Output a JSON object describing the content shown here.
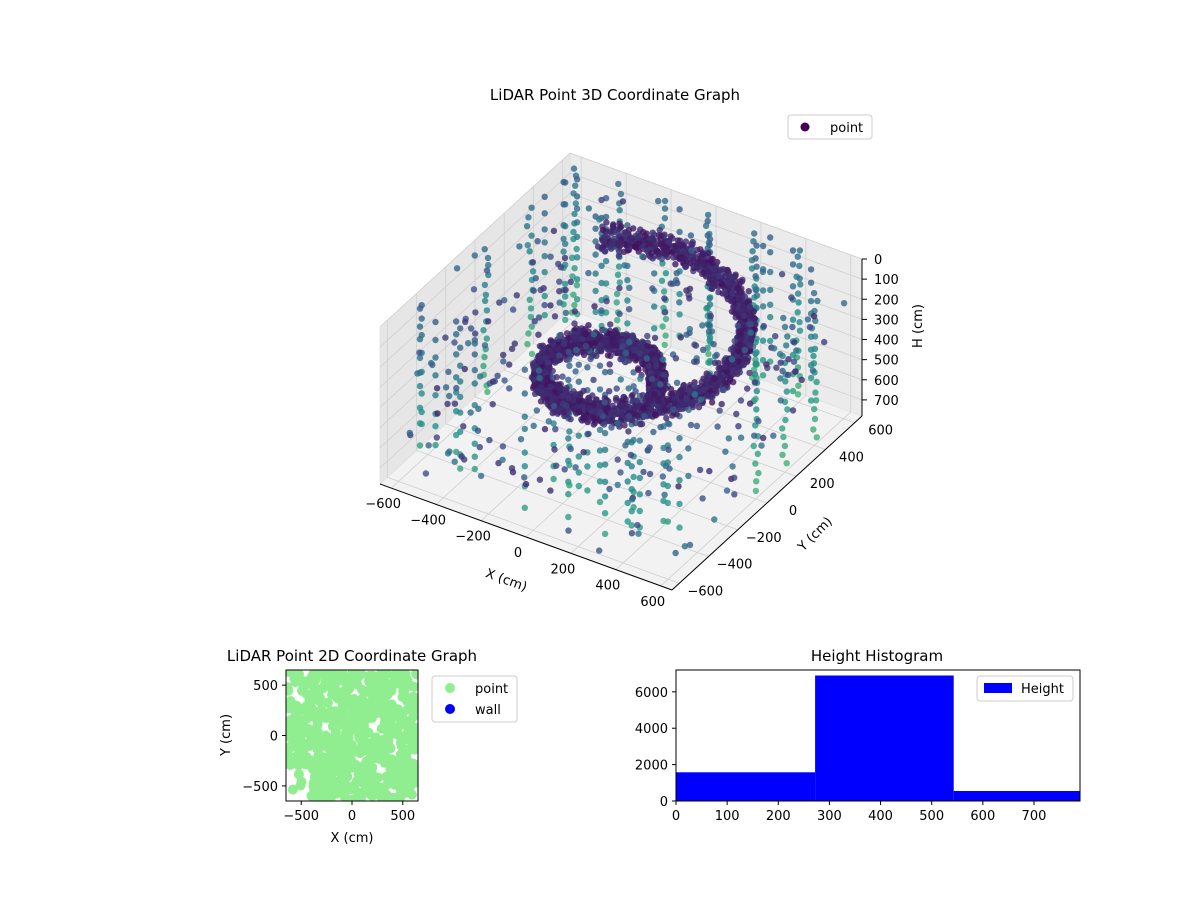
{
  "chart_data": [
    {
      "type": "scatter",
      "dims": 3,
      "title": "LiDAR Point 3D Coordinate Graph",
      "xlabel": "X (cm)",
      "ylabel": "Y (cm)",
      "zlabel": "H (cm)",
      "xlim": [
        -650,
        650
      ],
      "ylim": [
        -650,
        650
      ],
      "zlim": [
        0,
        780
      ],
      "z_inverted": true,
      "x_ticks": [
        "−600",
        "−400",
        "−200",
        "0",
        "200",
        "400",
        "600"
      ],
      "x_tick_values": [
        -600,
        -400,
        -200,
        0,
        200,
        400,
        600
      ],
      "y_ticks": [
        "−600",
        "−400",
        "−200",
        "0",
        "200",
        "400",
        "600"
      ],
      "y_tick_values": [
        -600,
        -400,
        -200,
        0,
        200,
        400,
        600
      ],
      "z_ticks": [
        "0",
        "100",
        "200",
        "300",
        "400",
        "500",
        "600",
        "700"
      ],
      "z_tick_values": [
        0,
        100,
        200,
        300,
        400,
        500,
        600,
        700
      ],
      "colormap": "viridis",
      "grid": true,
      "legend": {
        "entries": [
          "point"
        ],
        "placement": "top-right"
      },
      "series": [
        {
          "name": "point",
          "color": "#440154",
          "description_shape": "spiral ramp of dense points with scattered vertical columns",
          "spiral": {
            "turns": 1.3,
            "radius_range": [
              120,
              560
            ],
            "height_range": [
              120,
              450
            ]
          },
          "columns_sampled": [
            {
              "x": -600,
              "y": 600
            },
            {
              "x": -400,
              "y": 600
            },
            {
              "x": -200,
              "y": 600
            },
            {
              "x": 0,
              "y": 600
            },
            {
              "x": 200,
              "y": 600
            },
            {
              "x": 400,
              "y": 600
            },
            {
              "x": 600,
              "y": 400
            },
            {
              "x": 600,
              "y": 200
            },
            {
              "x": 600,
              "y": 0
            },
            {
              "x": -600,
              "y": 300
            },
            {
              "x": -600,
              "y": 0
            }
          ]
        }
      ]
    },
    {
      "type": "scatter",
      "dims": 2,
      "title": "LiDAR Point 2D Coordinate Graph",
      "xlabel": "X (cm)",
      "ylabel": "Y (cm)",
      "xlim": [
        -650,
        650
      ],
      "ylim": [
        -650,
        650
      ],
      "x_ticks": [
        "−500",
        "0",
        "500"
      ],
      "x_tick_values": [
        -500,
        0,
        500
      ],
      "y_ticks": [
        "500",
        "0",
        "−500"
      ],
      "y_tick_values": [
        500,
        0,
        -500
      ],
      "legend": {
        "entries": [
          "point",
          "wall"
        ],
        "placement": "outside-right"
      },
      "series": [
        {
          "name": "point",
          "color": "#90ee90"
        },
        {
          "name": "wall",
          "color": "#0000ff"
        }
      ]
    },
    {
      "type": "bar",
      "subtype": "histogram",
      "title": "Height Histogram",
      "xlim": [
        0,
        790
      ],
      "ylim": [
        0,
        7200
      ],
      "x_ticks": [
        "0",
        "100",
        "200",
        "300",
        "400",
        "500",
        "600",
        "700"
      ],
      "x_tick_values": [
        0,
        100,
        200,
        300,
        400,
        500,
        600,
        700
      ],
      "y_ticks": [
        "0",
        "2000",
        "4000",
        "6000"
      ],
      "y_tick_values": [
        0,
        2000,
        4000,
        6000
      ],
      "bins": [
        {
          "start": 0,
          "end": 272,
          "count": 1580
        },
        {
          "start": 272,
          "end": 543,
          "count": 6900
        },
        {
          "start": 543,
          "end": 815,
          "count": 550
        }
      ],
      "legend": {
        "entries": [
          "Height"
        ],
        "placement": "top-right"
      },
      "series": [
        {
          "name": "Height",
          "color": "#0000ff"
        }
      ]
    }
  ]
}
